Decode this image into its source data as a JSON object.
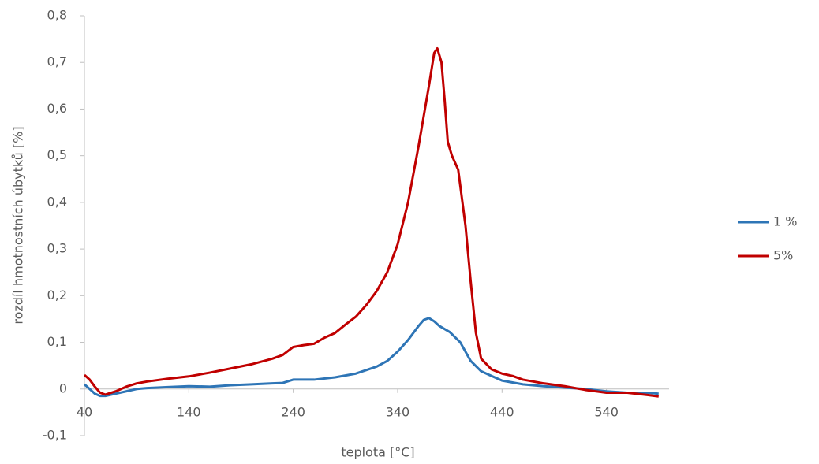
{
  "chart_data": {
    "type": "line",
    "x_label": "teplota [°C]",
    "y_label": "rozdíl hmotnostních úbytků [%]",
    "xlim": [
      40,
      600
    ],
    "xticks": [
      40,
      140,
      240,
      340,
      440,
      540
    ],
    "ylim": [
      -0.1,
      0.8
    ],
    "yticks": [
      {
        "value": -0.1,
        "label": "-0,1"
      },
      0,
      {
        "value": 0.1,
        "label": "0,1"
      },
      {
        "value": 0.2,
        "label": "0,2"
      },
      {
        "value": 0.3,
        "label": "0,3"
      },
      {
        "value": 0.4,
        "label": "0,4"
      },
      {
        "value": 0.5,
        "label": "0,5"
      },
      {
        "value": 0.6,
        "label": "0,6"
      },
      {
        "value": 0.7,
        "label": "0,7"
      },
      {
        "value": 0.8,
        "label": "0,8"
      }
    ],
    "grid": false,
    "legend": "right",
    "series": [
      {
        "name": "1 %",
        "color": "#2e75b6",
        "x": [
          40,
          45,
          50,
          55,
          60,
          70,
          80,
          90,
          100,
          120,
          140,
          160,
          180,
          200,
          220,
          230,
          240,
          260,
          280,
          300,
          320,
          330,
          340,
          350,
          360,
          365,
          370,
          375,
          380,
          390,
          400,
          410,
          420,
          430,
          440,
          460,
          480,
          500,
          520,
          540,
          560,
          580,
          590
        ],
        "values": [
          0.01,
          0.0,
          -0.01,
          -0.015,
          -0.015,
          -0.01,
          -0.005,
          0.0,
          0.002,
          0.004,
          0.006,
          0.005,
          0.008,
          0.01,
          0.012,
          0.013,
          0.02,
          0.02,
          0.025,
          0.033,
          0.048,
          0.06,
          0.08,
          0.105,
          0.135,
          0.148,
          0.152,
          0.145,
          0.135,
          0.122,
          0.1,
          0.06,
          0.038,
          0.028,
          0.018,
          0.01,
          0.006,
          0.003,
          0.0,
          -0.005,
          -0.008,
          -0.008,
          -0.01
        ]
      },
      {
        "name": "5%",
        "color": "#c00000",
        "x": [
          40,
          45,
          50,
          55,
          60,
          70,
          80,
          90,
          100,
          120,
          140,
          160,
          180,
          200,
          220,
          230,
          240,
          250,
          260,
          270,
          280,
          290,
          300,
          310,
          320,
          330,
          340,
          350,
          360,
          370,
          375,
          378,
          382,
          385,
          388,
          392,
          398,
          405,
          410,
          415,
          420,
          430,
          440,
          450,
          460,
          480,
          500,
          520,
          540,
          560,
          580,
          590
        ],
        "values": [
          0.03,
          0.02,
          0.005,
          -0.008,
          -0.012,
          -0.005,
          0.005,
          0.012,
          0.016,
          0.022,
          0.027,
          0.035,
          0.044,
          0.053,
          0.065,
          0.073,
          0.09,
          0.094,
          0.097,
          0.11,
          0.12,
          0.138,
          0.155,
          0.18,
          0.21,
          0.25,
          0.31,
          0.4,
          0.52,
          0.65,
          0.72,
          0.73,
          0.7,
          0.62,
          0.53,
          0.5,
          0.47,
          0.35,
          0.23,
          0.12,
          0.065,
          0.042,
          0.033,
          0.028,
          0.02,
          0.012,
          0.006,
          -0.002,
          -0.008,
          -0.008,
          -0.013,
          -0.016
        ]
      }
    ]
  }
}
